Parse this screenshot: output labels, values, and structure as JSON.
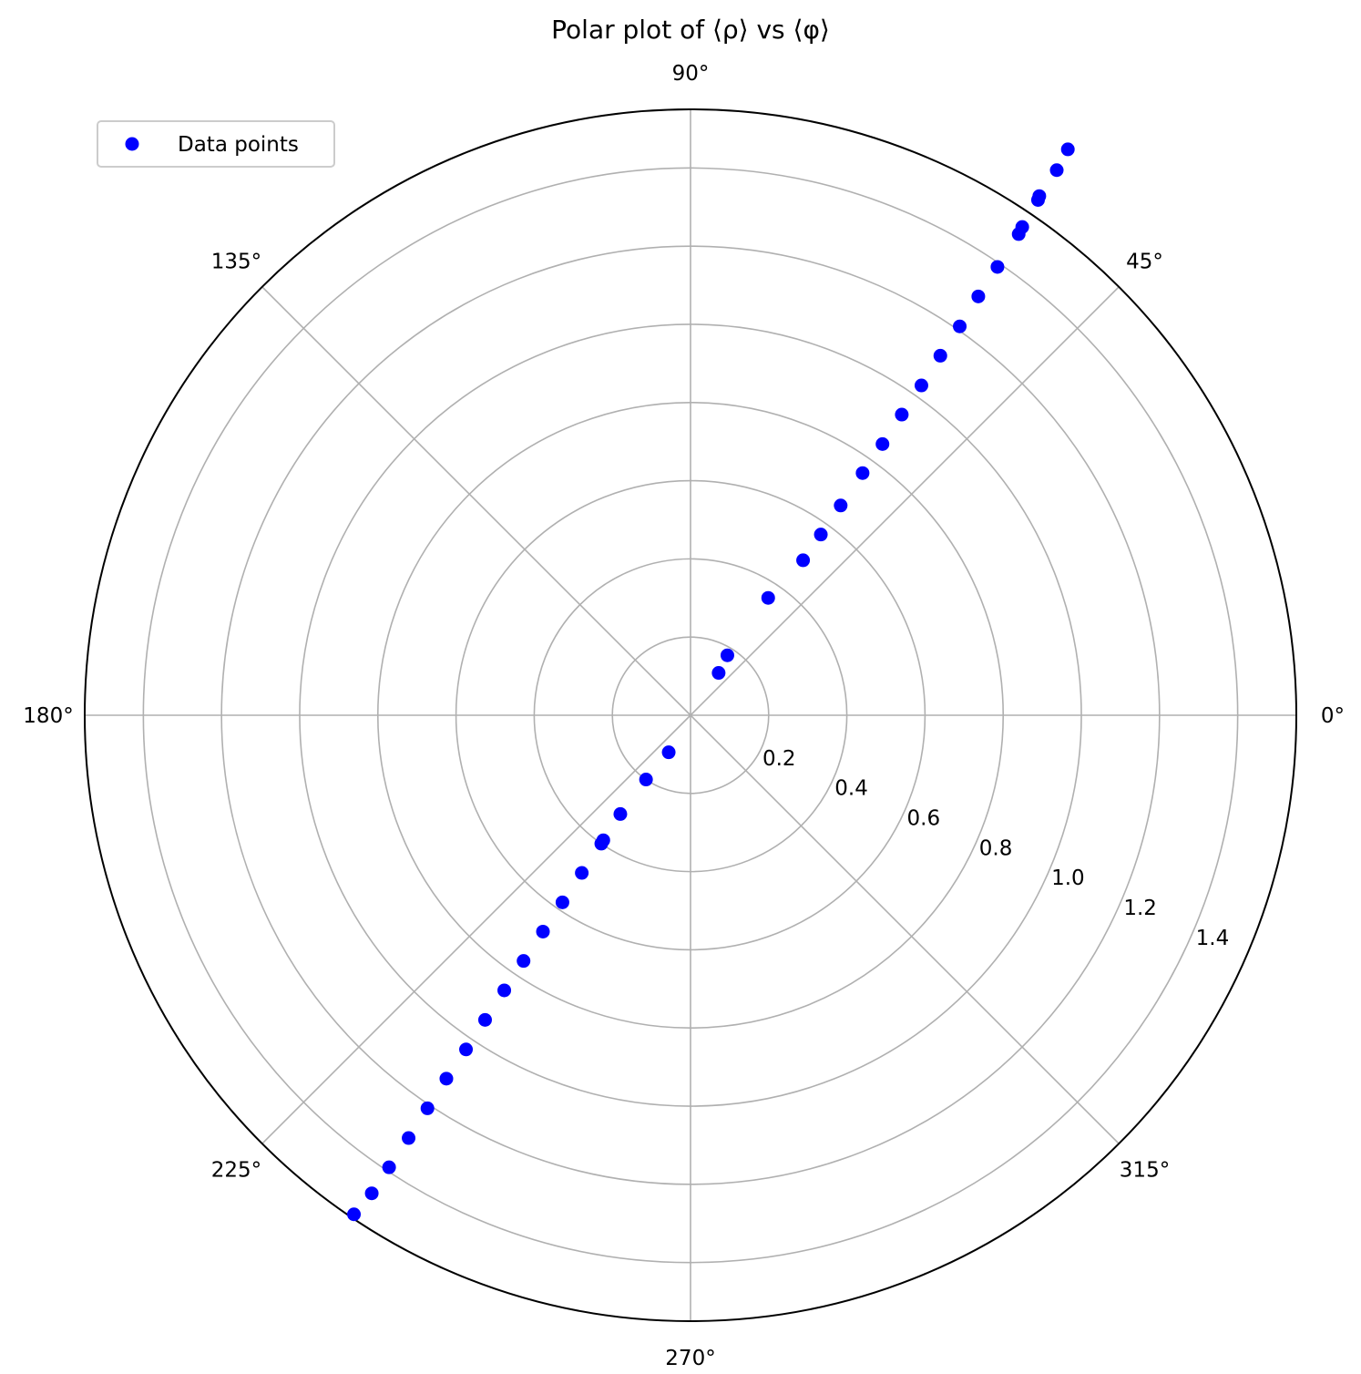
{
  "chart_data": {
    "type": "scatter",
    "projection": "polar",
    "title": "Polar plot of ⟨ρ⟩ vs ⟨φ⟩",
    "theta_ticks": [
      "0°",
      "45°",
      "90°",
      "135°",
      "180°",
      "225°",
      "270°",
      "315°"
    ],
    "theta_tick_values": [
      0,
      45,
      90,
      135,
      180,
      225,
      270,
      315
    ],
    "r_ticks": [
      "0.2",
      "0.4",
      "0.6",
      "0.8",
      "1.0",
      "1.2",
      "1.4"
    ],
    "r_tick_values": [
      0.2,
      0.4,
      0.6,
      0.8,
      1.0,
      1.2,
      1.4
    ],
    "rlim": [
      0,
      1.55
    ],
    "grid": true,
    "legend": {
      "placement": "top-left",
      "entries": [
        "Data points"
      ]
    },
    "series": [
      {
        "name": "Data points",
        "color": "#0000ff",
        "points": [
          {
            "theta": 56.3,
            "r": 1.74
          },
          {
            "theta": 56.1,
            "r": 1.68
          },
          {
            "theta": 56.1,
            "r": 1.6
          },
          {
            "theta": 56.0,
            "r": 1.59
          },
          {
            "theta": 55.8,
            "r": 1.51
          },
          {
            "theta": 55.7,
            "r": 1.49
          },
          {
            "theta": 55.6,
            "r": 1.39
          },
          {
            "theta": 55.5,
            "r": 1.3
          },
          {
            "theta": 55.3,
            "r": 1.21
          },
          {
            "theta": 55.2,
            "r": 1.12
          },
          {
            "theta": 55.0,
            "r": 1.03
          },
          {
            "theta": 54.9,
            "r": 0.94
          },
          {
            "theta": 54.7,
            "r": 0.85
          },
          {
            "theta": 54.6,
            "r": 0.76
          },
          {
            "theta": 54.4,
            "r": 0.66
          },
          {
            "theta": 54.2,
            "r": 0.57
          },
          {
            "theta": 54.0,
            "r": 0.49
          },
          {
            "theta": 56.5,
            "r": 0.36
          },
          {
            "theta": 58.4,
            "r": 0.18
          },
          {
            "theta": 56.4,
            "r": 0.13
          },
          {
            "theta": 239.5,
            "r": 0.11
          },
          {
            "theta": 235.3,
            "r": 0.2
          },
          {
            "theta": 234.6,
            "r": 0.31
          },
          {
            "theta": 235.1,
            "r": 0.39
          },
          {
            "theta": 235.2,
            "r": 0.4
          },
          {
            "theta": 235.4,
            "r": 0.49
          },
          {
            "theta": 235.6,
            "r": 0.58
          },
          {
            "theta": 235.7,
            "r": 0.67
          },
          {
            "theta": 235.8,
            "r": 0.76
          },
          {
            "theta": 235.9,
            "r": 0.85
          },
          {
            "theta": 236.0,
            "r": 0.94
          },
          {
            "theta": 236.1,
            "r": 1.03
          },
          {
            "theta": 236.1,
            "r": 1.12
          },
          {
            "theta": 236.2,
            "r": 1.21
          },
          {
            "theta": 236.3,
            "r": 1.3
          },
          {
            "theta": 236.3,
            "r": 1.39
          },
          {
            "theta": 236.3,
            "r": 1.47
          },
          {
            "theta": 236.0,
            "r": 1.54
          }
        ]
      }
    ]
  }
}
